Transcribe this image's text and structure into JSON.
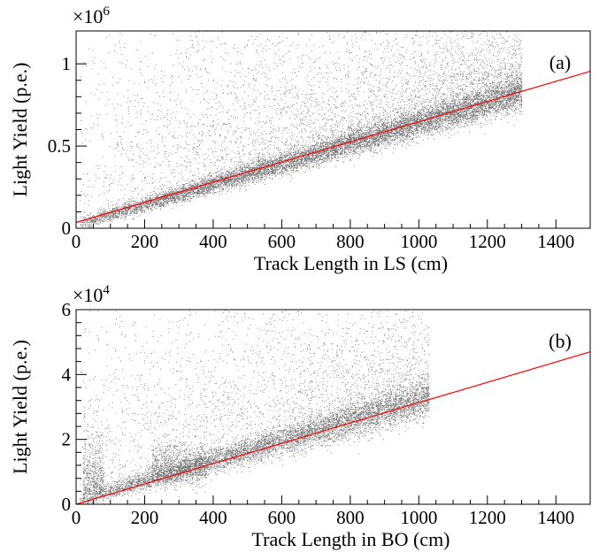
{
  "chart_data": [
    {
      "type": "scatter",
      "panel_label": "(a)",
      "xlabel": "Track Length in LS (cm)",
      "ylabel": "Light Yield (p.e.)",
      "y_multiplier": {
        "base": "×10",
        "exponent": "6"
      },
      "xlim": [
        0,
        1500
      ],
      "ylim": [
        0,
        1.2
      ],
      "x_ticks": [
        0,
        200,
        400,
        600,
        800,
        1000,
        1200,
        1400
      ],
      "x_tick_labels": [
        "0",
        "200",
        "400",
        "600",
        "800",
        "1000",
        "1200",
        "1400"
      ],
      "y_ticks": [
        0,
        0.5,
        1
      ],
      "y_tick_labels": [
        "0",
        "0.5",
        "1"
      ],
      "fit_line": {
        "x": [
          0,
          1500
        ],
        "y": [
          0.035,
          0.955
        ]
      },
      "scatter": {
        "x_range": [
          10,
          1300
        ],
        "band_slope": 0.00062,
        "band_intercept": 0.02,
        "band_width": 0.06,
        "points": 14000,
        "color": "#000000"
      },
      "fit_color": "#ff0000",
      "grid": false
    },
    {
      "type": "scatter",
      "panel_label": "(b)",
      "xlabel": "Track Length in BO (cm)",
      "ylabel": "Light Yield (p.e.)",
      "y_multiplier": {
        "base": "×10",
        "exponent": "4"
      },
      "xlim": [
        0,
        1500
      ],
      "ylim": [
        0,
        6
      ],
      "x_ticks": [
        0,
        200,
        400,
        600,
        800,
        1000,
        1200,
        1400
      ],
      "x_tick_labels": [
        "0",
        "200",
        "400",
        "600",
        "800",
        "1000",
        "1200",
        "1400"
      ],
      "y_ticks": [
        0,
        2,
        4,
        6
      ],
      "y_tick_labels": [
        "0",
        "2",
        "4",
        "6"
      ],
      "fit_line": {
        "x": [
          0,
          1500
        ],
        "y": [
          0.0,
          4.7
        ]
      },
      "scatter": {
        "x_range": [
          5,
          1030
        ],
        "band_slope": 0.0031,
        "band_intercept": 0.1,
        "band_width": 0.35,
        "points": 9000,
        "color": "#000000"
      },
      "fit_color": "#ff0000",
      "grid": false
    }
  ]
}
